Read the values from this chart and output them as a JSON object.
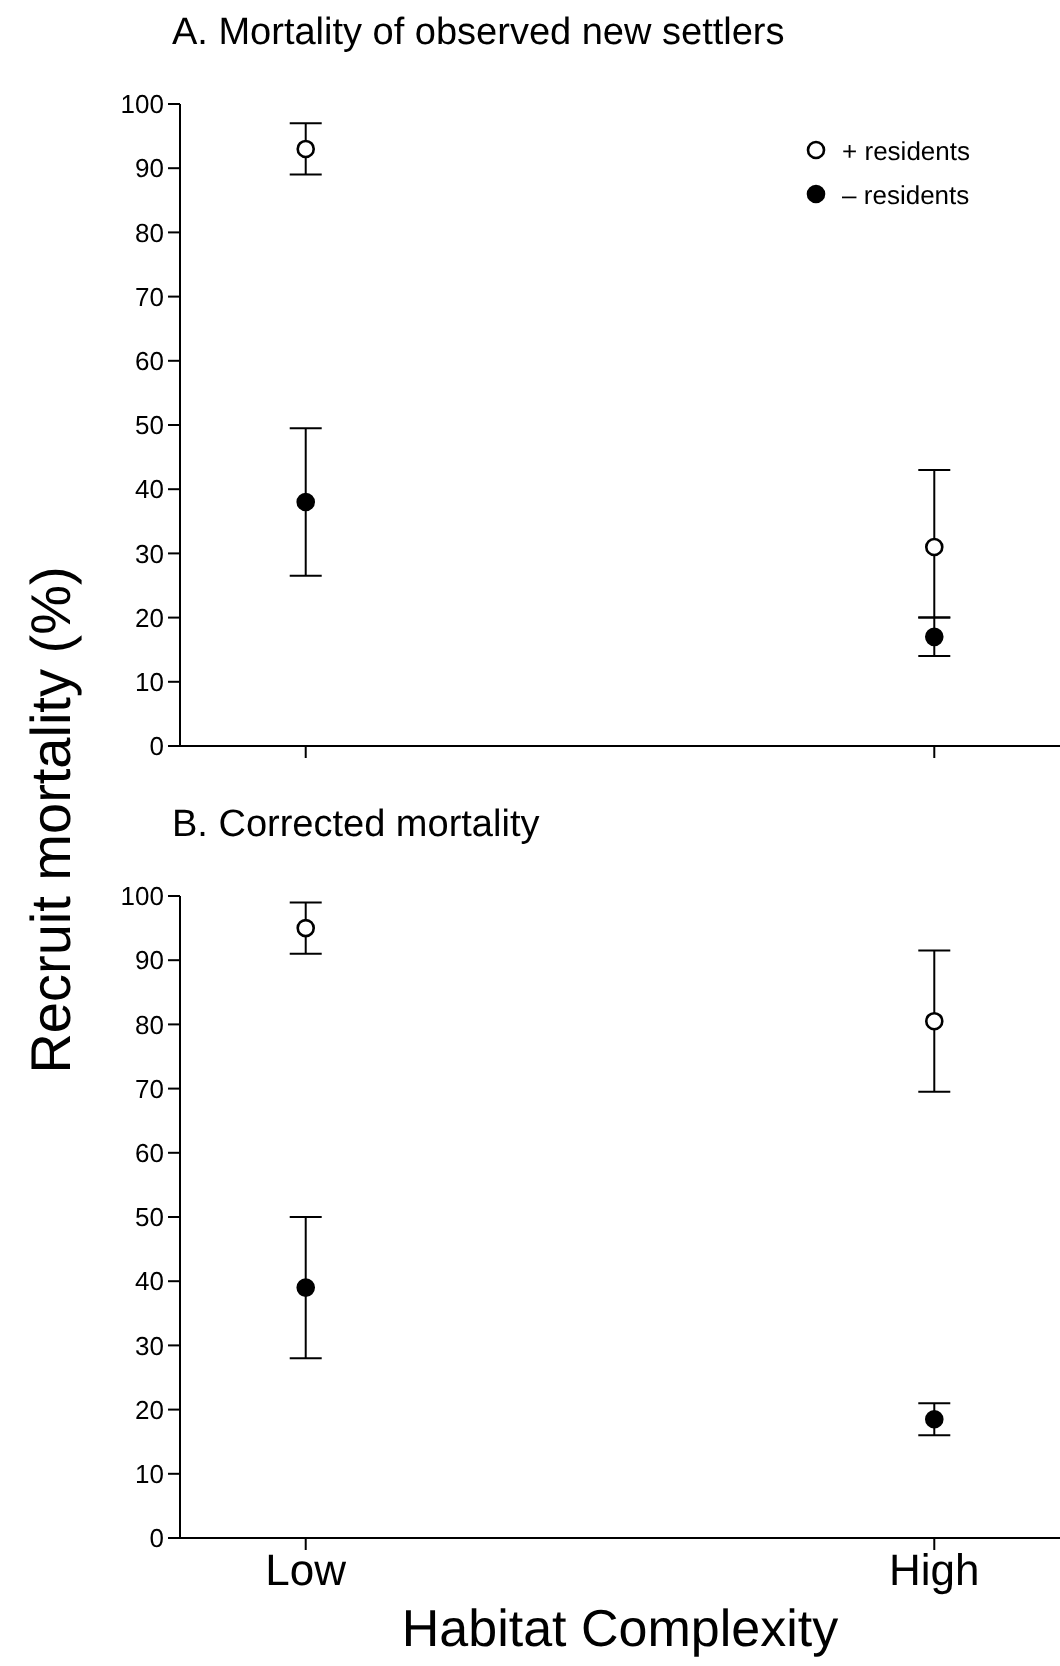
{
  "chart_data": [
    {
      "type": "scatter",
      "title": "A. Mortality of observed new settlers",
      "categories": [
        null,
        null
      ],
      "ylim": [
        0,
        100
      ],
      "yticks": [
        0,
        10,
        20,
        30,
        40,
        50,
        60,
        70,
        80,
        90,
        100
      ],
      "tick_labels": "y",
      "grid": false,
      "legend": "top right",
      "marker": "circle",
      "series": [
        {
          "name": "+ residents",
          "color": "#000000",
          "values": [
            93,
            31
          ],
          "errors": [
            [
              89,
              97
            ],
            [
              20,
              43
            ]
          ]
        },
        {
          "name": "– residents",
          "color": "#000000",
          "values": [
            38,
            17
          ],
          "errors": [
            [
              26.5,
              49.5
            ],
            [
              14,
              20
            ]
          ]
        }
      ]
    },
    {
      "type": "scatter",
      "title": "B. Corrected mortality",
      "xlabel": "Habitat Complexity",
      "ylabel": "Recruit mortality (%)",
      "categories": [
        "Low",
        "High"
      ],
      "ylim": [
        0,
        100
      ],
      "yticks": [
        0,
        10,
        20,
        30,
        40,
        50,
        60,
        70,
        80,
        90,
        100
      ],
      "grid": false,
      "legend": false,
      "marker": "circle",
      "series": [
        {
          "color": "#000000",
          "values": [
            95,
            80.5
          ],
          "errors": [
            [
              91,
              99
            ],
            [
              69.5,
              91.5
            ]
          ]
        },
        {
          "color": "#000000",
          "values": [
            39,
            18.5
          ],
          "errors": [
            [
              28,
              50
            ],
            [
              16,
              21
            ]
          ]
        }
      ]
    }
  ]
}
